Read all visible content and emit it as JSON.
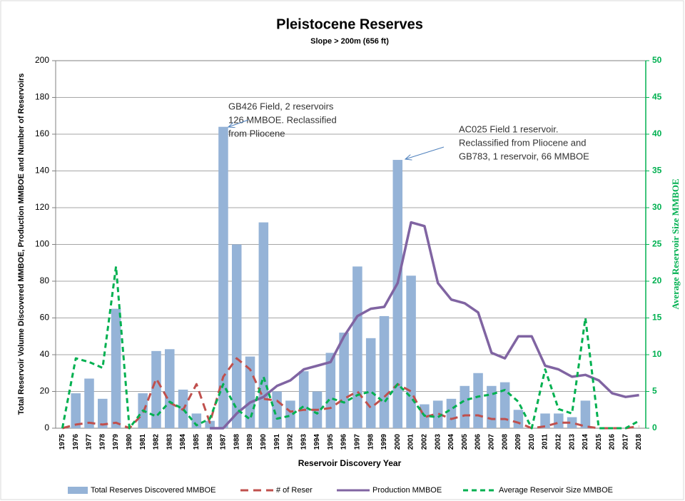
{
  "chart_data": {
    "type": "combo",
    "title": "Pleistocene Reserves",
    "subtitle": "Slope > 200m (656 ft)",
    "x_label": "Reservoir Discovery Year",
    "y_label": "Total Reservoir Volume Discovered MMBOE, Production MMBOE and Number of Reservoirs",
    "y2_label": "Average Reservoir Size MMBOE",
    "categories": [
      "1975",
      "1976",
      "1977",
      "1978",
      "1979",
      "1980",
      "1981",
      "1982",
      "1983",
      "1984",
      "1985",
      "1986",
      "1987",
      "1988",
      "1989",
      "1990",
      "1991",
      "1992",
      "1993",
      "1994",
      "1995",
      "1996",
      "1997",
      "1998",
      "1999",
      "2000",
      "2001",
      "2002",
      "2003",
      "2004",
      "2005",
      "2006",
      "2007",
      "2008",
      "2009",
      "2010",
      "2011",
      "2012",
      "2013",
      "2014",
      "2015",
      "2016",
      "2017",
      "2018"
    ],
    "series": [
      {
        "name": "Total Reserves Discovered MMBOE",
        "type": "bar",
        "color": "#95b3d7",
        "values": [
          0,
          19,
          27,
          16,
          65,
          0,
          19,
          42,
          43,
          21,
          8,
          4,
          164,
          100,
          39,
          112,
          20,
          15,
          31,
          20,
          41,
          52,
          88,
          49,
          61,
          146,
          83,
          13,
          15,
          16,
          23,
          30,
          23,
          25,
          10,
          0,
          8,
          8,
          6,
          15,
          0,
          0,
          0,
          0
        ]
      },
      {
        "name": "# of Reser",
        "type": "line",
        "dash": true,
        "color": "#c0504d",
        "values": [
          0,
          2,
          3,
          2,
          3,
          0,
          8,
          27,
          14,
          10,
          24,
          3,
          28,
          38,
          32,
          16,
          15,
          9,
          10,
          10,
          11,
          16,
          20,
          11,
          17,
          24,
          20,
          6,
          8,
          5,
          7,
          7,
          5,
          5,
          3,
          0,
          1,
          3,
          3,
          1,
          0,
          0,
          0,
          1
        ]
      },
      {
        "name": "Production MMBOE",
        "type": "line",
        "dash": false,
        "color": "#8064a2",
        "values": [
          null,
          null,
          null,
          null,
          null,
          null,
          null,
          null,
          null,
          null,
          null,
          0,
          0,
          8,
          14,
          17,
          23,
          26,
          32,
          34,
          36,
          50,
          61,
          65,
          66,
          79,
          112,
          110,
          79,
          70,
          68,
          63,
          41,
          38,
          50,
          50,
          34,
          32,
          28,
          29,
          26,
          19,
          17,
          18
        ]
      },
      {
        "name": "Average Reservoir Size MMBOE",
        "type": "line",
        "dash": true,
        "axis": "y2",
        "color": "#00b050",
        "values": [
          0,
          9.5,
          9,
          8.2,
          22,
          0,
          2.4,
          1.6,
          3.6,
          2.6,
          0.4,
          1.3,
          6,
          2.6,
          1.2,
          7,
          1.3,
          1.7,
          3,
          2,
          4.1,
          3.5,
          4.5,
          5,
          3.5,
          6,
          4.2,
          1.7,
          1.5,
          2.6,
          3.8,
          4.3,
          4.6,
          5.2,
          3.6,
          0,
          8,
          2.6,
          2,
          15,
          0,
          0,
          0,
          1
        ]
      }
    ],
    "ylim": [
      0,
      200
    ],
    "yticks": [
      0,
      20,
      40,
      60,
      80,
      100,
      120,
      140,
      160,
      180,
      200
    ],
    "y2lim": [
      0,
      50
    ],
    "y2ticks": [
      0,
      5,
      10,
      15,
      20,
      25,
      30,
      35,
      40,
      45,
      50
    ],
    "grid": true,
    "legend": "bottom",
    "annotations": [
      {
        "lines": [
          "GB426 Field, 2 reservoirs",
          "126 MMBOE. Reclassified",
          "from Pliocene"
        ]
      },
      {
        "lines": [
          "AC025 Field 1 reservoir.",
          "Reclassified from Pliocene and",
          "GB783, 1 reservoir, 66 MMBOE"
        ]
      }
    ]
  }
}
